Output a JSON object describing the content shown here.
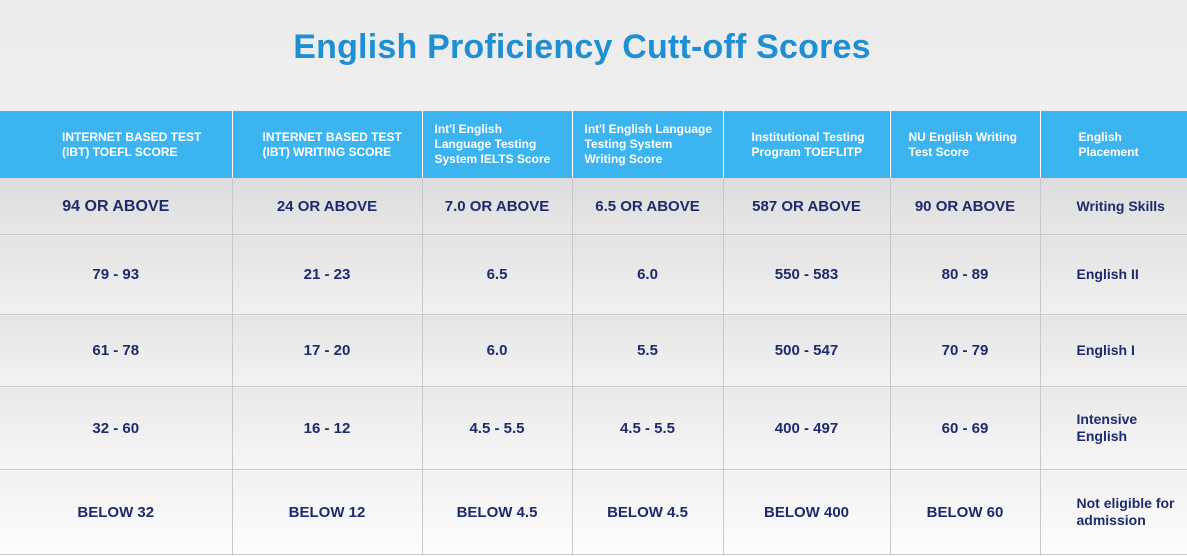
{
  "title": "English Proficiency Cutt-off Scores",
  "colors": {
    "title": "#1f8fd3",
    "header_bg": "#3cb4ef",
    "header_text": "#ffffff",
    "cell_text": "#1d2a6e"
  },
  "table": {
    "headers": [
      "INTERNET BASED TEST (IBT) TOEFL SCORE",
      "INTERNET BASED TEST (IBT) WRITING SCORE",
      "Int'l English Language Testing System IELTS Score",
      "Int'l English Language Testing System Writing Score",
      "Institutional Testing Program TOEFLITP",
      "NU English Writing Test Score",
      "English Placement"
    ],
    "rows": [
      [
        "94 OR ABOVE",
        "24 OR ABOVE",
        "7.0 OR ABOVE",
        "6.5 OR ABOVE",
        "587 OR ABOVE",
        "90 OR ABOVE",
        "Writing Skills"
      ],
      [
        "79 - 93",
        "21 - 23",
        "6.5",
        "6.0",
        "550 - 583",
        "80 - 89",
        "English II"
      ],
      [
        "61 - 78",
        "17 - 20",
        "6.0",
        "5.5",
        "500 - 547",
        "70 - 79",
        "English I"
      ],
      [
        "32 - 60",
        "16 - 12",
        "4.5 - 5.5",
        "4.5 - 5.5",
        "400 - 497",
        "60 - 69",
        "Intensive English"
      ],
      [
        "BELOW 32",
        "BELOW 12",
        "BELOW 4.5",
        "BELOW 4.5",
        "BELOW 400",
        "BELOW 60",
        "Not eligible for admission"
      ]
    ]
  }
}
